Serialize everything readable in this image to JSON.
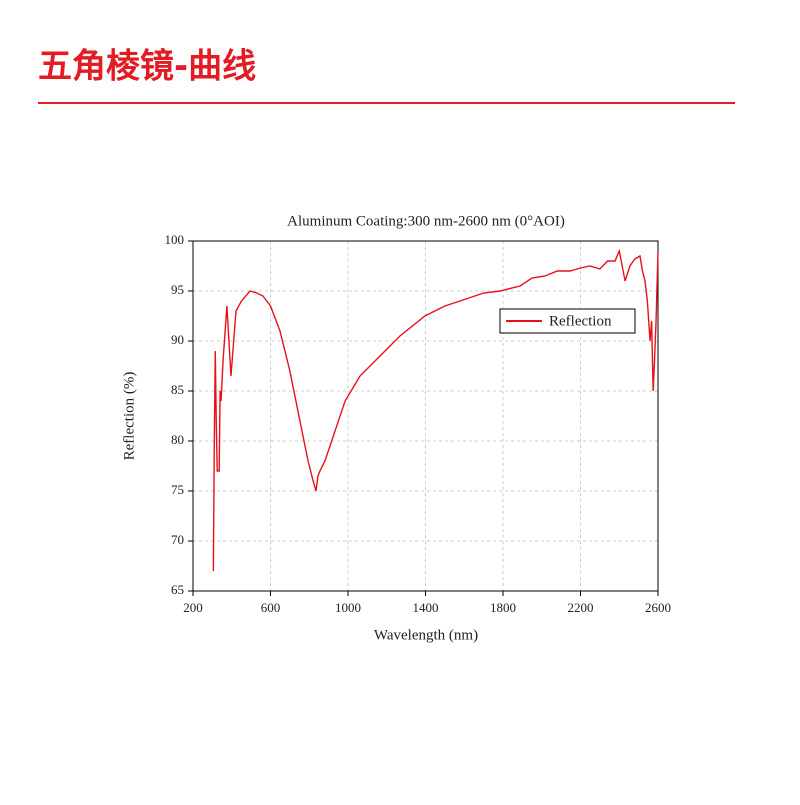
{
  "header": {
    "title": "五角棱镜-曲线"
  },
  "chart_data": {
    "type": "line",
    "title": "Aluminum Coating:300 nm-2600 nm (0°AOI)",
    "x_label": "Wavelength (nm)",
    "y_label": "Reflection (%)",
    "x": [
      305,
      310,
      315,
      320,
      325,
      335,
      340,
      345,
      355,
      375,
      396,
      422,
      450,
      494,
      530,
      561,
      600,
      649,
      700,
      752,
      794,
      820,
      835,
      845,
      855,
      881,
      933,
      985,
      1062,
      1165,
      1268,
      1397,
      1500,
      1578,
      1700,
      1785,
      1888,
      1950,
      2017,
      2080,
      2146,
      2200,
      2249,
      2300,
      2340,
      2378,
      2400,
      2430,
      2455,
      2480,
      2507,
      2520,
      2533,
      2545,
      2559,
      2567,
      2575,
      2582,
      2590,
      2600
    ],
    "series": [
      {
        "name": "Reflection",
        "color": "#e8101a",
        "values": [
          67,
          80,
          89,
          82,
          77,
          77,
          85,
          84,
          88,
          93.5,
          86.5,
          93,
          94,
          95,
          94.8,
          94.5,
          93.5,
          91,
          87,
          82,
          78,
          76,
          75,
          76.5,
          77,
          78,
          81,
          84,
          86.5,
          88.5,
          90.5,
          92.5,
          93.5,
          94,
          94.8,
          95,
          95.5,
          96.3,
          96.5,
          97,
          97,
          97.3,
          97.5,
          97.2,
          98,
          98,
          99,
          96,
          97.5,
          98.2,
          98.5,
          97,
          96,
          94,
          90,
          92,
          85,
          88,
          92,
          99
        ]
      }
    ],
    "xlim": [
      200,
      2600
    ],
    "ylim": [
      65,
      100
    ],
    "xticks": [
      200,
      600,
      1000,
      1400,
      1800,
      2200,
      2600
    ],
    "yticks": [
      65,
      70,
      75,
      80,
      85,
      90,
      95,
      100
    ],
    "grid": true,
    "legend": "right"
  }
}
